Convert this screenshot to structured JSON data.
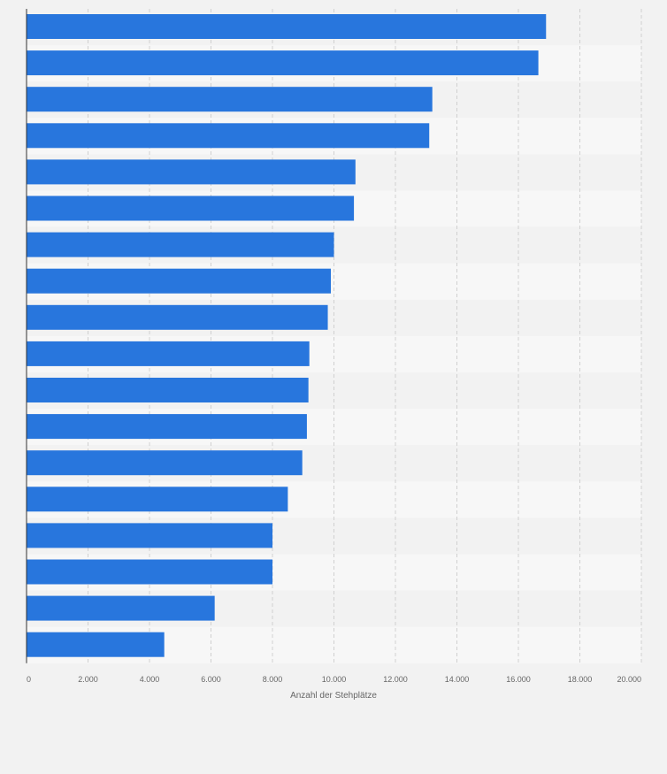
{
  "chart_data": {
    "type": "bar",
    "orientation": "horizontal",
    "categories": [
      "",
      "",
      "",
      "",
      "",
      "",
      "",
      "",
      "",
      "",
      "",
      "",
      "",
      "",
      "",
      "",
      "",
      ""
    ],
    "values": [
      16900,
      16650,
      13200,
      13100,
      10700,
      10650,
      10000,
      9900,
      9800,
      9200,
      9170,
      9120,
      8970,
      8500,
      8000,
      8000,
      6120,
      4480
    ],
    "xlabel": "Anzahl der Stehplätze",
    "ylabel": "",
    "xlim": [
      0,
      20000
    ],
    "x_ticks": [
      0,
      2000,
      4000,
      6000,
      8000,
      10000,
      12000,
      14000,
      16000,
      18000,
      20000
    ],
    "x_tick_labels": [
      "0",
      "2.000",
      "4.000",
      "6.000",
      "8.000",
      "10.000",
      "12.000",
      "14.000",
      "16.000",
      "18.000",
      "20.000"
    ],
    "grid": true,
    "colors": {
      "bar": "#2876dd",
      "band_light": "#f7f7f7",
      "band_dark": "#f2f2f2",
      "grid": "#d0d0d0",
      "axis": "#333333",
      "tick_text": "#666666"
    }
  }
}
